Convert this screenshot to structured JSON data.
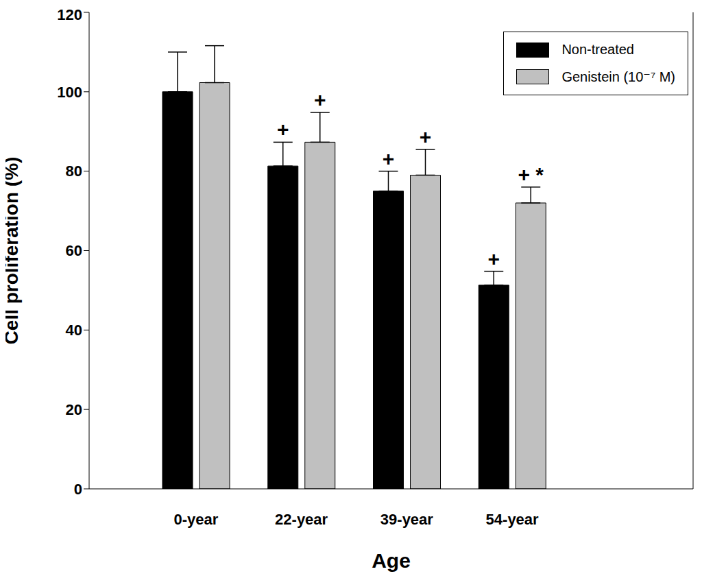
{
  "chart_data": {
    "type": "bar",
    "categories": [
      "0-year",
      "22-year",
      "39-year",
      "54-year"
    ],
    "x_label": "Age",
    "y_label": "Cell proliferation (%)",
    "ylim": [
      0,
      120
    ],
    "yticks": [
      0,
      20,
      40,
      60,
      80,
      100,
      120
    ],
    "legend": "upper right",
    "series": [
      {
        "name": "Non-treated",
        "color": "#000000",
        "values": [
          100,
          81.3,
          75,
          51.3
        ],
        "errors": [
          10,
          6,
          5,
          3.5
        ],
        "annotations": [
          null,
          "+",
          "+",
          "+"
        ]
      },
      {
        "name": "Genistein (10⁻⁷ M)",
        "color": "#c0c0c0",
        "values": [
          102.3,
          87.3,
          79,
          72
        ],
        "errors": [
          9.3,
          7.5,
          6.5,
          4
        ],
        "annotations": [
          null,
          "+",
          "+",
          "+ *"
        ]
      }
    ]
  }
}
